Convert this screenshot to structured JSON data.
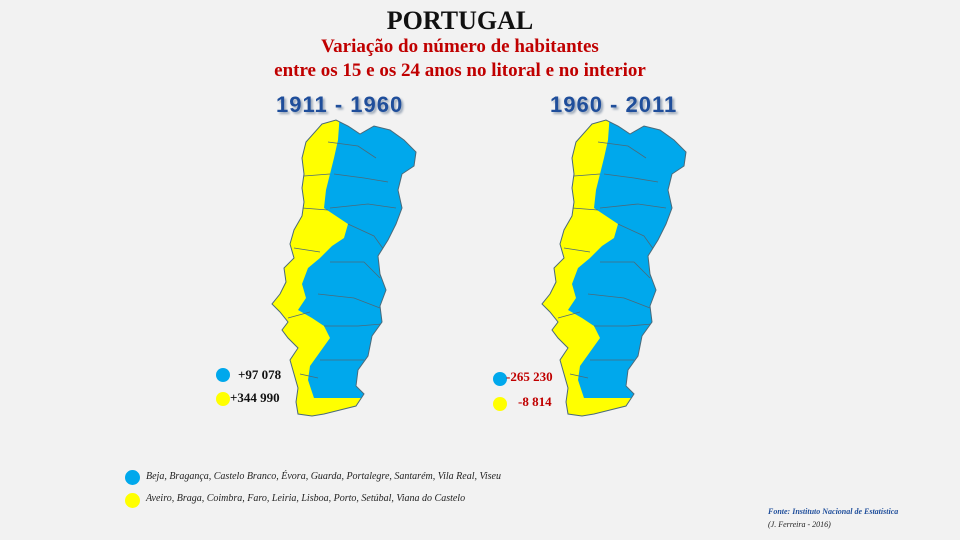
{
  "header": {
    "title": "PORTUGAL",
    "subtitle_line1": "Variação do número de habitantes",
    "subtitle_line2": "entre os 15 e os 24 anos no litoral e no interior"
  },
  "colors": {
    "interior": "#00a8ec",
    "litoral": "#ffff00"
  },
  "maps": [
    {
      "period": "1911 - 1960",
      "interior_value": "+97 078",
      "litoral_value": "+344 990"
    },
    {
      "period": "1960 - 2011",
      "interior_value": "-265 230",
      "litoral_value": "-8 814"
    }
  ],
  "legend": {
    "interior": "Beja, Bragança, Castelo Branco, Évora, Guarda, Portalegre, Santarém, Vila Real, Viseu",
    "litoral": "Aveiro, Braga, Coimbra, Faro, Leiria, Lisboa, Porto, Setúbal, Viana do Castelo"
  },
  "footer": {
    "source": "Fonte: Instituto Nacional de Estatística",
    "author": "(J. Ferreira - 2016)"
  }
}
